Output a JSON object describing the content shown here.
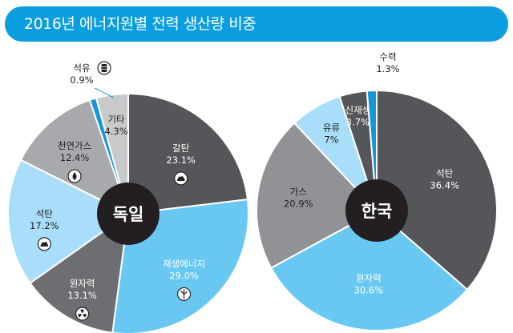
{
  "header": {
    "title": "2016년 에너지원별 전력 생산량 비중"
  },
  "chart_data": [
    {
      "type": "pie",
      "center_label": "독일",
      "slices": [
        {
          "label": "갈탄",
          "value": 23.1,
          "value_text": "23.1%",
          "color": "#555659",
          "icon": "coal-pile-icon"
        },
        {
          "label": "재생에너지",
          "value": 29.0,
          "value_text": "29.0%",
          "color": "#69c8f2",
          "icon": "wind-turbine-icon"
        },
        {
          "label": "원자력",
          "value": 13.1,
          "value_text": "13.1%",
          "color": "#6d6e71",
          "icon": "radiation-icon"
        },
        {
          "label": "석탄",
          "value": 17.2,
          "value_text": "17.2%",
          "color": "#a8defa",
          "icon": "coal-pile-icon"
        },
        {
          "label": "천연가스",
          "value": 12.4,
          "value_text": "12.4%",
          "color": "#a7a9ac",
          "icon": "gas-drop-icon"
        },
        {
          "label": "석유",
          "value": 0.9,
          "value_text": "0.9%",
          "color": "#1596d8",
          "icon": "oil-barrel-icon"
        },
        {
          "label": "기타",
          "value": 4.3,
          "value_text": "4.3%",
          "color": "#c8c9cb",
          "icon": ""
        }
      ]
    },
    {
      "type": "pie",
      "center_label": "한국",
      "slices": [
        {
          "label": "석탄",
          "value": 36.4,
          "value_text": "36.4%",
          "color": "#555659"
        },
        {
          "label": "원자력",
          "value": 30.6,
          "value_text": "30.6%",
          "color": "#69c8f2"
        },
        {
          "label": "가스",
          "value": 20.9,
          "value_text": "20.9%",
          "color": "#909295"
        },
        {
          "label": "유류",
          "value": 7,
          "value_text": "7%",
          "color": "#a8defa"
        },
        {
          "label": "신재생",
          "value": 3.7,
          "value_text": "3.7%",
          "color": "#555659"
        },
        {
          "label": "수력",
          "value": 1.3,
          "value_text": "1.3%",
          "color": "#1596d8"
        }
      ]
    }
  ]
}
